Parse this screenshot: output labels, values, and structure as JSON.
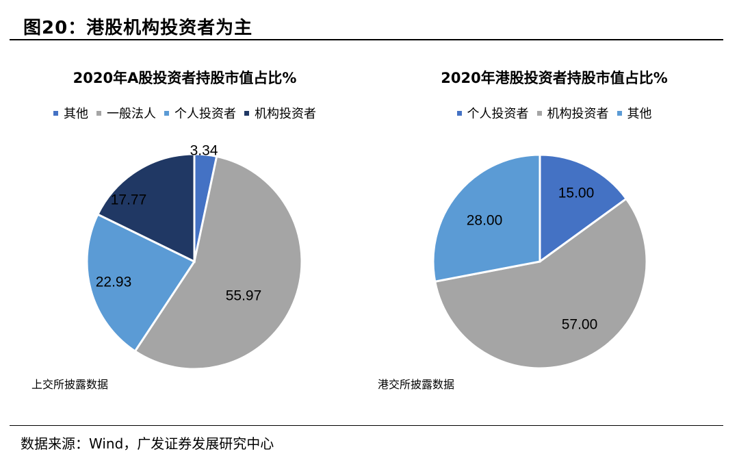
{
  "header": {
    "title": "图20：港股机构投资者为主"
  },
  "footer": {
    "source": "数据来源：Wind，广发证券发展研究中心"
  },
  "chart_data": [
    {
      "type": "pie",
      "title": "2020年A股投资者持股市值占比%",
      "legend_position": "top",
      "start_angle_deg": 0,
      "direction": "clockwise",
      "slices": [
        {
          "label": "其他",
          "value": 3.34,
          "value_label": "3.34",
          "color": "#4472C4"
        },
        {
          "label": "一般法人",
          "value": 55.97,
          "value_label": "55.97",
          "color": "#A5A5A5"
        },
        {
          "label": "个人投资者",
          "value": 22.93,
          "value_label": "22.93",
          "color": "#5B9BD5"
        },
        {
          "label": "机构投资者",
          "value": 17.77,
          "value_label": "17.77",
          "color": "#203864"
        }
      ],
      "note": "上交所披露数据"
    },
    {
      "type": "pie",
      "title": "2020年港股投资者持股市值占比%",
      "legend_position": "top",
      "start_angle_deg": 0,
      "direction": "clockwise",
      "slices": [
        {
          "label": "个人投资者",
          "value": 15.0,
          "value_label": "15.00",
          "color": "#4472C4"
        },
        {
          "label": "机构投资者",
          "value": 57.0,
          "value_label": "57.00",
          "color": "#A5A5A5"
        },
        {
          "label": "其他",
          "value": 28.0,
          "value_label": "28.00",
          "color": "#5B9BD5"
        }
      ],
      "note": "港交所披露数据"
    }
  ]
}
